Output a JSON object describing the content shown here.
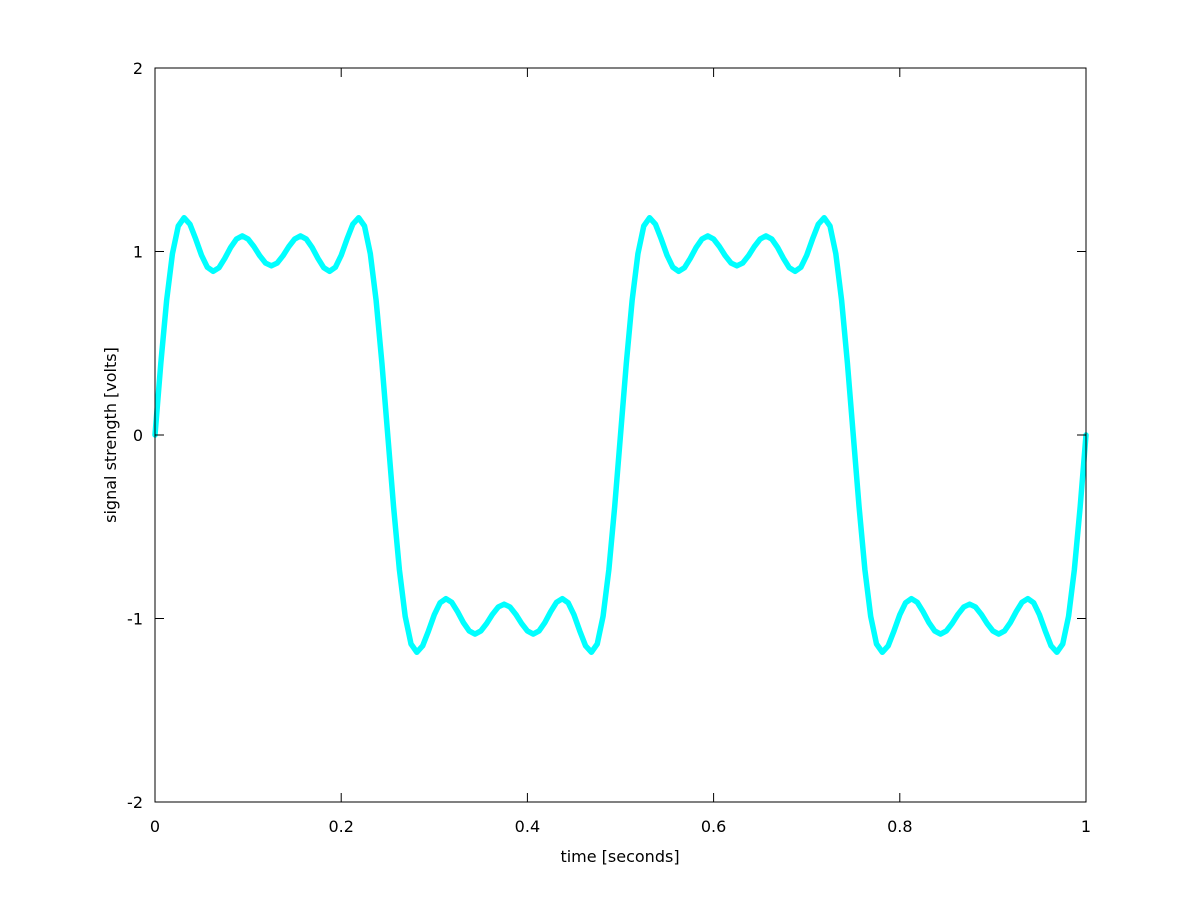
{
  "chart_data": {
    "type": "line",
    "xlabel": "time [seconds]",
    "ylabel": "signal strength [volts]",
    "xlim": [
      0,
      1
    ],
    "ylim": [
      -2,
      2
    ],
    "xticks": [
      0,
      0.2,
      0.4,
      0.6,
      0.8,
      1
    ],
    "yticks": [
      -2,
      -1,
      0,
      1,
      2
    ],
    "box": true,
    "x": [
      0,
      0.00625,
      0.0125,
      0.01875,
      0.025,
      0.03125,
      0.0375,
      0.04375,
      0.05,
      0.05625,
      0.0625,
      0.06875,
      0.075,
      0.08125,
      0.0875,
      0.09375,
      0.1,
      0.10625,
      0.1125,
      0.11875,
      0.125,
      0.13125,
      0.1375,
      0.14375,
      0.15,
      0.15625,
      0.1625,
      0.16875,
      0.175,
      0.18125,
      0.1875,
      0.19375,
      0.2,
      0.20625,
      0.2125,
      0.21875,
      0.225,
      0.23125,
      0.2375,
      0.24375,
      0.25,
      0.25625,
      0.2625,
      0.26875,
      0.275,
      0.28125,
      0.2875,
      0.29375,
      0.3,
      0.30625,
      0.3125,
      0.31875,
      0.325,
      0.33125,
      0.3375,
      0.34375,
      0.35,
      0.35625,
      0.3625,
      0.36875,
      0.375,
      0.38125,
      0.3875,
      0.39375,
      0.4,
      0.40625,
      0.4125,
      0.41875,
      0.425,
      0.43125,
      0.4375,
      0.44375,
      0.45,
      0.45625,
      0.4625,
      0.46875,
      0.475,
      0.48125,
      0.4875,
      0.49375,
      0.5,
      0.50625,
      0.5125,
      0.51875,
      0.525,
      0.53125,
      0.5375,
      0.54375,
      0.55,
      0.55625,
      0.5625,
      0.56875,
      0.575,
      0.58125,
      0.5875,
      0.59375,
      0.6,
      0.60625,
      0.6125,
      0.61875,
      0.625,
      0.63125,
      0.6375,
      0.64375,
      0.65,
      0.65625,
      0.6625,
      0.66875,
      0.675,
      0.68125,
      0.6875,
      0.69375,
      0.7,
      0.70625,
      0.7125,
      0.71875,
      0.725,
      0.73125,
      0.7375,
      0.74375,
      0.75,
      0.75625,
      0.7625,
      0.76875,
      0.775,
      0.78125,
      0.7875,
      0.79375,
      0.8,
      0.80625,
      0.8125,
      0.81875,
      0.825,
      0.83125,
      0.8375,
      0.84375,
      0.85,
      0.85625,
      0.8625,
      0.86875,
      0.875,
      0.88125,
      0.8875,
      0.89375,
      0.9,
      0.90625,
      0.9125,
      0.91875,
      0.925,
      0.93125,
      0.9375,
      0.94375,
      0.95,
      0.95625,
      0.9625,
      0.96875,
      0.975,
      0.98125,
      0.9875,
      0.99375,
      1
    ],
    "series": [
      {
        "color": "#00ffff",
        "values": [
          0,
          0.391,
          0.734,
          0.989,
          1.139,
          1.184,
          1.149,
          1.068,
          0.979,
          0.914,
          0.892,
          0.912,
          0.963,
          1.022,
          1.068,
          1.085,
          1.068,
          1.027,
          0.977,
          0.937,
          0.922,
          0.937,
          0.977,
          1.027,
          1.068,
          1.085,
          1.068,
          1.022,
          0.963,
          0.912,
          0.892,
          0.914,
          0.979,
          1.068,
          1.149,
          1.184,
          1.139,
          0.989,
          0.734,
          0.391,
          0,
          -0.391,
          -0.734,
          -0.989,
          -1.139,
          -1.184,
          -1.149,
          -1.068,
          -0.979,
          -0.914,
          -0.892,
          -0.912,
          -0.963,
          -1.022,
          -1.068,
          -1.085,
          -1.068,
          -1.027,
          -0.977,
          -0.937,
          -0.922,
          -0.937,
          -0.977,
          -1.027,
          -1.068,
          -1.085,
          -1.068,
          -1.022,
          -0.963,
          -0.912,
          -0.892,
          -0.914,
          -0.979,
          -1.068,
          -1.149,
          -1.184,
          -1.139,
          -0.989,
          -0.734,
          -0.391,
          0,
          0.391,
          0.734,
          0.989,
          1.139,
          1.184,
          1.149,
          1.068,
          0.979,
          0.914,
          0.892,
          0.912,
          0.963,
          1.022,
          1.068,
          1.085,
          1.068,
          1.027,
          0.977,
          0.937,
          0.922,
          0.937,
          0.977,
          1.027,
          1.068,
          1.085,
          1.068,
          1.022,
          0.963,
          0.912,
          0.892,
          0.914,
          0.979,
          1.068,
          1.149,
          1.184,
          1.139,
          0.989,
          0.734,
          0.391,
          0,
          -0.391,
          -0.734,
          -0.989,
          -1.139,
          -1.184,
          -1.149,
          -1.068,
          -0.979,
          -0.914,
          -0.892,
          -0.912,
          -0.963,
          -1.022,
          -1.068,
          -1.085,
          -1.068,
          -1.027,
          -0.977,
          -0.937,
          -0.922,
          -0.937,
          -0.977,
          -1.027,
          -1.068,
          -1.085,
          -1.068,
          -1.022,
          -0.963,
          -0.912,
          -0.892,
          -0.914,
          -0.979,
          -1.068,
          -1.149,
          -1.184,
          -1.139,
          -0.989,
          -0.734,
          -0.391,
          0
        ]
      }
    ]
  }
}
